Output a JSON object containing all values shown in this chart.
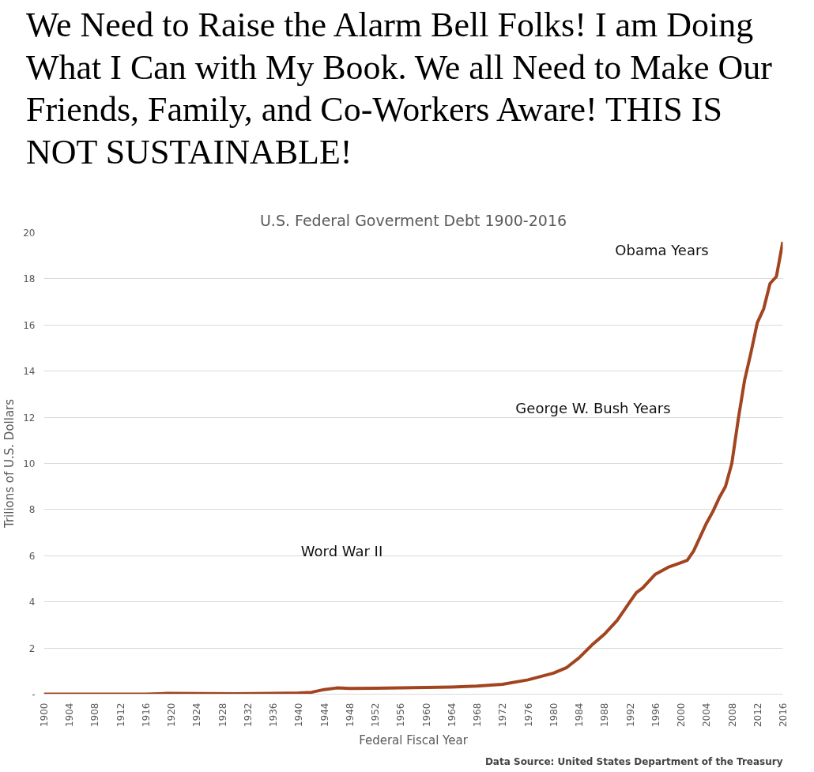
{
  "chart_data": {
    "type": "line",
    "title": "We Need to Raise the Alarm Bell Folks! I am Doing What I Can with My Book. We all Need to Make Our Friends, Family, and Co-Workers Aware! THIS IS NOT SUSTAINABLE!",
    "subtitle": "U.S. Federal Goverment Debt 1900-2016",
    "xlabel": "Federal Fiscal Year",
    "ylabel": "Trilions of U.S. Dollars",
    "x": [
      1900,
      1916,
      1917,
      1919,
      1930,
      1936,
      1940,
      1942,
      1944,
      1946,
      1948,
      1952,
      1956,
      1960,
      1964,
      1968,
      1972,
      1976,
      1980,
      1982,
      1984,
      1986,
      1988,
      1990,
      1992,
      1993,
      1994,
      1996,
      1998,
      2000,
      2001,
      2002,
      2003,
      2004,
      2005,
      2006,
      2007,
      2008,
      2009,
      2010,
      2011,
      2012,
      2013,
      2014,
      2015,
      2016
    ],
    "series": [
      {
        "color": "#a2441f",
        "values": [
          0,
          0,
          0.01,
          0.03,
          0.02,
          0.03,
          0.05,
          0.08,
          0.2,
          0.27,
          0.25,
          0.26,
          0.27,
          0.29,
          0.31,
          0.35,
          0.43,
          0.62,
          0.91,
          1.14,
          1.57,
          2.12,
          2.6,
          3.2,
          4.0,
          4.4,
          4.6,
          5.2,
          5.5,
          5.7,
          5.8,
          6.2,
          6.8,
          7.4,
          7.9,
          8.5,
          9.0,
          10.0,
          11.9,
          13.6,
          14.8,
          16.1,
          16.7,
          17.8,
          18.1,
          19.6
        ]
      }
    ],
    "xlim": [
      1900,
      2016
    ],
    "xticks": [
      1900,
      1904,
      1908,
      1912,
      1916,
      1920,
      1924,
      1928,
      1932,
      1936,
      1940,
      1944,
      1948,
      1952,
      1956,
      1960,
      1964,
      1968,
      1972,
      1976,
      1980,
      1984,
      1988,
      1992,
      1996,
      2000,
      2004,
      2008,
      2012,
      2016
    ],
    "ylim": [
      0,
      20
    ],
    "yticks": [
      {
        "value": 0,
        "label": "-"
      },
      2,
      4,
      6,
      8,
      10,
      12,
      14,
      16,
      18,
      20
    ],
    "grid": "y",
    "line_style": "solid",
    "annotations": [
      "Word War II",
      "George W. Bush Years",
      "Obama Years",
      "Data Source: United States Department of the Treasury"
    ]
  }
}
